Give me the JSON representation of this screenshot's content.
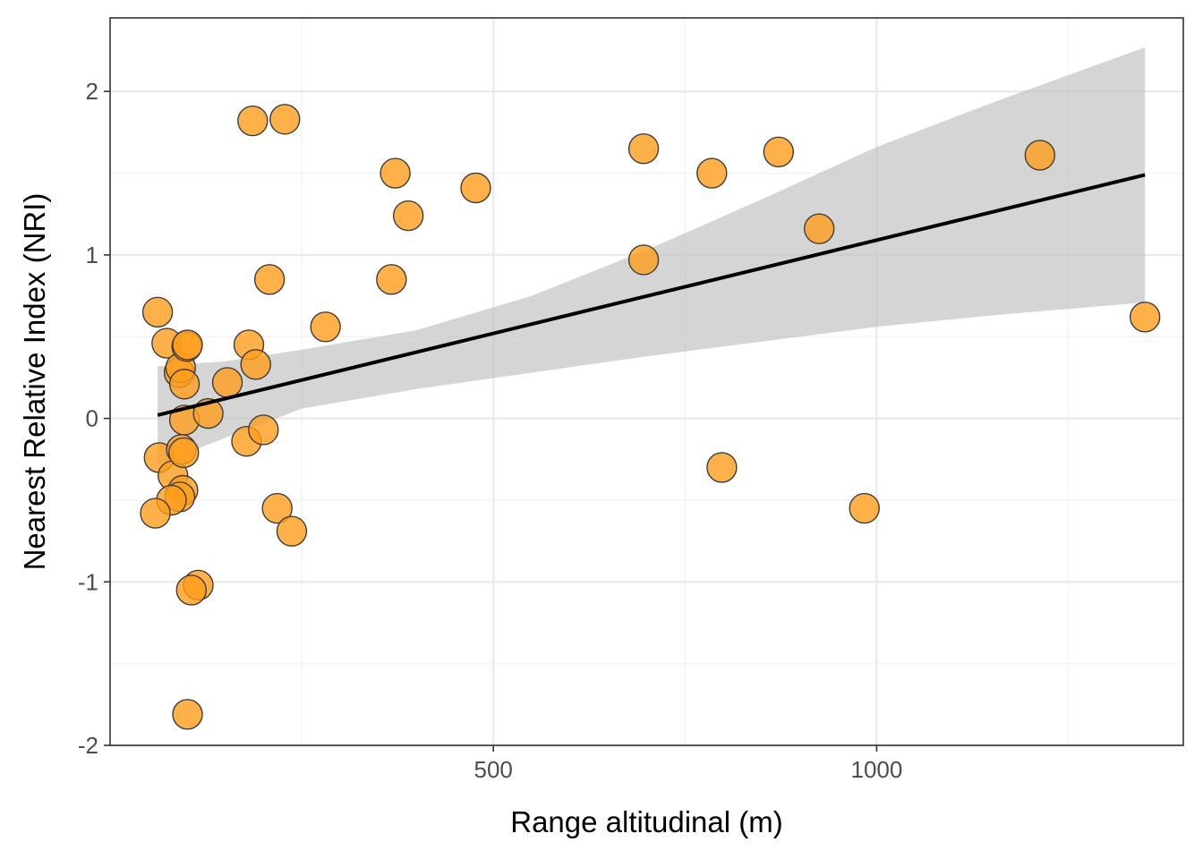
{
  "chart_data": {
    "type": "scatter",
    "title": "",
    "xlabel": "Range altitudinal (m)",
    "ylabel": "Nearest Relative Index (NRI)",
    "xlim": [
      0,
      1400
    ],
    "ylim": [
      -2,
      2.45
    ],
    "x_ticks": [
      500,
      1000
    ],
    "x_tick_labels": [
      "500",
      "1000"
    ],
    "y_ticks": [
      -2,
      -1,
      0,
      1,
      2
    ],
    "y_tick_labels": [
      "-2",
      "-1",
      "0",
      "1",
      "2"
    ],
    "grid": true,
    "legend": "none",
    "points": [
      {
        "x": 62,
        "y": 0.65
      },
      {
        "x": 74,
        "y": 0.46
      },
      {
        "x": 90,
        "y": 0.28
      },
      {
        "x": 92,
        "y": 0.31
      },
      {
        "x": 100,
        "y": 0.44
      },
      {
        "x": 101,
        "y": 0.45
      },
      {
        "x": 97,
        "y": 0.21
      },
      {
        "x": 97,
        "y": -0.01
      },
      {
        "x": 64,
        "y": -0.24
      },
      {
        "x": 82,
        "y": -0.35
      },
      {
        "x": 93,
        "y": -0.19
      },
      {
        "x": 96,
        "y": -0.21
      },
      {
        "x": 95,
        "y": -0.44
      },
      {
        "x": 91,
        "y": -0.48
      },
      {
        "x": 80,
        "y": -0.5
      },
      {
        "x": 59,
        "y": -0.58
      },
      {
        "x": 115,
        "y": -1.02
      },
      {
        "x": 106,
        "y": -1.05
      },
      {
        "x": 101,
        "y": -1.81
      },
      {
        "x": 128,
        "y": 0.03
      },
      {
        "x": 153,
        "y": 0.22
      },
      {
        "x": 178,
        "y": -0.14
      },
      {
        "x": 181,
        "y": 0.45
      },
      {
        "x": 190,
        "y": 0.33
      },
      {
        "x": 200,
        "y": -0.07
      },
      {
        "x": 186,
        "y": 1.82
      },
      {
        "x": 228,
        "y": 1.83
      },
      {
        "x": 208,
        "y": 0.85
      },
      {
        "x": 218,
        "y": -0.55
      },
      {
        "x": 237,
        "y": -0.69
      },
      {
        "x": 281,
        "y": 0.56
      },
      {
        "x": 367,
        "y": 0.85
      },
      {
        "x": 372,
        "y": 1.5
      },
      {
        "x": 389,
        "y": 1.24
      },
      {
        "x": 477,
        "y": 1.41
      },
      {
        "x": 696,
        "y": 1.65
      },
      {
        "x": 696,
        "y": 0.97
      },
      {
        "x": 785,
        "y": 1.5
      },
      {
        "x": 798,
        "y": -0.3
      },
      {
        "x": 872,
        "y": 1.63
      },
      {
        "x": 925,
        "y": 1.16
      },
      {
        "x": 984,
        "y": -0.55
      },
      {
        "x": 1213,
        "y": 1.61
      },
      {
        "x": 1350,
        "y": 0.62
      }
    ],
    "fit": {
      "method": "linear",
      "x": [
        62,
        1350
      ],
      "y": [
        0.02,
        1.49
      ]
    },
    "confidence_band": {
      "x": [
        62,
        150,
        250,
        400,
        550,
        700,
        850,
        1000,
        1150,
        1350
      ],
      "upper": [
        0.32,
        0.35,
        0.42,
        0.54,
        0.75,
        1.03,
        1.34,
        1.66,
        1.93,
        2.27
      ],
      "lower": [
        -0.28,
        -0.12,
        0.06,
        0.18,
        0.28,
        0.38,
        0.47,
        0.56,
        0.63,
        0.71
      ]
    },
    "colors": {
      "point_fill": "#ff9e1b",
      "point_fill_opacity": 0.8,
      "point_stroke": "#3d3d3d",
      "fit_line": "#000000",
      "band": "#bfbfbf",
      "band_opacity": 0.65,
      "grid_major": "#ebebeb",
      "grid_minor": "#f3f3f3",
      "panel_border": "#333333"
    }
  }
}
